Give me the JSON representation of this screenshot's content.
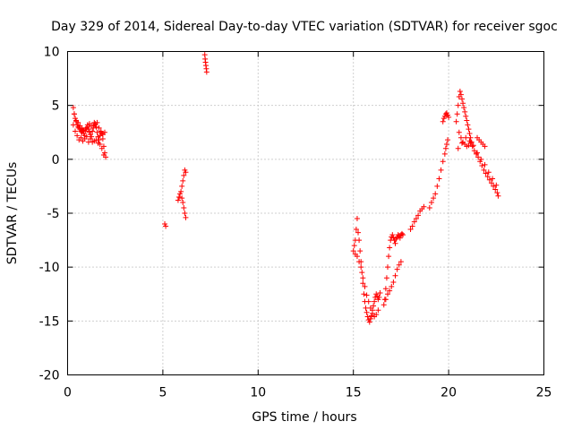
{
  "chart_data": {
    "type": "scatter",
    "title": "Day 329 of 2014, Sidereal Day-to-day VTEC variation (SDTVAR) for receiver sgoc",
    "xlabel": "GPS time / hours",
    "ylabel": "SDTVAR / TECUs",
    "xlim": [
      0,
      25
    ],
    "ylim": [
      -20,
      10
    ],
    "xticks": [
      0,
      5,
      10,
      15,
      20,
      25
    ],
    "yticks": [
      -20,
      -15,
      -10,
      -5,
      0,
      5,
      10
    ],
    "grid": true,
    "legend": "none",
    "marker": "plus",
    "color": "#ff0000",
    "series": [
      {
        "name": "SDTVAR",
        "x": [
          0.3,
          0.35,
          0.4,
          0.45,
          0.5,
          0.55,
          0.6,
          0.65,
          0.7,
          0.75,
          0.8,
          0.85,
          0.9,
          0.95,
          1.0,
          1.05,
          1.1,
          1.15,
          1.2,
          1.25,
          1.3,
          1.35,
          1.4,
          1.45,
          1.5,
          1.55,
          1.6,
          1.65,
          1.7,
          1.75,
          1.8,
          1.85,
          1.9,
          1.95,
          2.0,
          0.3,
          0.4,
          0.5,
          0.6,
          0.7,
          0.8,
          0.9,
          1.0,
          1.1,
          1.2,
          1.3,
          1.4,
          1.5,
          1.6,
          1.7,
          1.8,
          1.9,
          0.35,
          0.45,
          0.55,
          0.65,
          0.75,
          0.85,
          0.95,
          1.05,
          1.15,
          1.25,
          1.35,
          1.45,
          1.55,
          1.65,
          1.75,
          1.85,
          1.95,
          5.1,
          5.15,
          5.8,
          5.85,
          5.9,
          5.95,
          6.0,
          6.05,
          6.1,
          6.15,
          6.2,
          6.2,
          6.15,
          6.1,
          6.05,
          6.0,
          7.2,
          7.22,
          7.24,
          7.26,
          7.28,
          7.3,
          15.0,
          15.05,
          15.1,
          15.15,
          15.2,
          15.25,
          15.3,
          15.35,
          15.4,
          15.45,
          15.5,
          15.55,
          15.6,
          15.65,
          15.7,
          15.75,
          15.8,
          15.85,
          15.9,
          15.95,
          16.0,
          16.05,
          16.1,
          16.15,
          16.2,
          16.25,
          16.3,
          16.35,
          16.4,
          15.1,
          15.2,
          15.3,
          15.4,
          15.5,
          15.6,
          15.7,
          15.8,
          15.9,
          16.0,
          16.1,
          16.2,
          16.3,
          16.6,
          16.65,
          16.7,
          16.75,
          16.8,
          16.85,
          16.9,
          16.95,
          17.0,
          17.05,
          17.1,
          17.15,
          17.2,
          17.25,
          17.3,
          17.35,
          17.4,
          17.45,
          17.5,
          17.55,
          17.6,
          16.7,
          16.8,
          16.9,
          17.0,
          17.1,
          17.2,
          17.3,
          17.4,
          17.5,
          18.0,
          18.1,
          18.2,
          18.3,
          18.4,
          18.5,
          18.6,
          18.7,
          19.0,
          19.1,
          19.2,
          19.3,
          19.4,
          19.5,
          19.6,
          19.7,
          19.8,
          19.85,
          19.9,
          19.95,
          19.7,
          19.75,
          19.8,
          19.85,
          19.9,
          19.95,
          20.0,
          20.4,
          20.45,
          20.5,
          20.55,
          20.6,
          20.65,
          20.7,
          20.75,
          20.8,
          20.85,
          20.9,
          20.95,
          21.0,
          21.05,
          21.1,
          21.15,
          21.2,
          20.55,
          20.65,
          20.75,
          20.85,
          20.95,
          21.05,
          21.15,
          21.25,
          21.35,
          21.45,
          21.55,
          21.65,
          21.75,
          21.85,
          21.95,
          22.05,
          22.15,
          22.25,
          22.35,
          22.45,
          22.55,
          22.6,
          20.5,
          20.7,
          20.9,
          21.1,
          21.3,
          21.5,
          21.7,
          21.9,
          22.1,
          22.3,
          22.5,
          21.5,
          21.6,
          21.7,
          21.8,
          21.9
        ],
        "y": [
          4.8,
          4.2,
          3.8,
          3.5,
          3.2,
          3.0,
          2.9,
          2.8,
          2.6,
          2.5,
          2.7,
          2.4,
          2.2,
          2.6,
          2.9,
          3.0,
          2.8,
          2.5,
          2.3,
          2.1,
          2.6,
          3.1,
          3.4,
          3.3,
          3.0,
          2.5,
          2.1,
          1.8,
          2.2,
          2.5,
          2.4,
          1.9,
          1.2,
          0.6,
          0.2,
          3.2,
          2.6,
          2.2,
          1.8,
          2.0,
          1.7,
          1.9,
          2.1,
          1.6,
          1.9,
          1.6,
          1.7,
          1.8,
          1.5,
          1.4,
          1.0,
          0.4,
          4.2,
          3.6,
          3.4,
          3.1,
          2.9,
          2.7,
          2.8,
          3.2,
          3.3,
          3.1,
          2.9,
          3.2,
          3.4,
          2.9,
          2.6,
          2.3,
          2.5,
          -6.0,
          -6.2,
          -3.8,
          -3.5,
          -3.2,
          -3.0,
          -2.5,
          -2.0,
          -1.5,
          -1.0,
          -1.2,
          -5.4,
          -5.0,
          -4.5,
          -4.0,
          -3.6,
          9.7,
          9.3,
          9.0,
          8.7,
          8.4,
          8.1,
          -8.5,
          -8.0,
          -7.5,
          -6.5,
          -5.5,
          -6.8,
          -7.5,
          -8.5,
          -9.5,
          -10.5,
          -11.5,
          -12.5,
          -13.2,
          -13.8,
          -14.2,
          -14.6,
          -14.9,
          -15.1,
          -14.8,
          -14.5,
          -14.0,
          -13.6,
          -13.2,
          -12.8,
          -12.5,
          -12.7,
          -13.0,
          -12.8,
          -12.4,
          -8.8,
          -9.0,
          -9.5,
          -10.0,
          -11.0,
          -11.8,
          -12.6,
          -13.2,
          -13.8,
          -14.3,
          -14.6,
          -14.4,
          -14.0,
          -13.5,
          -13.0,
          -12.0,
          -11.0,
          -10.0,
          -9.0,
          -8.2,
          -7.5,
          -7.2,
          -7.0,
          -7.3,
          -7.5,
          -7.8,
          -7.4,
          -7.2,
          -7.0,
          -7.1,
          -7.3,
          -7.0,
          -6.9,
          -7.0,
          -13.0,
          -12.5,
          -12.2,
          -11.8,
          -11.4,
          -10.8,
          -10.2,
          -9.8,
          -9.5,
          -6.5,
          -6.2,
          -5.8,
          -5.5,
          -5.2,
          -4.8,
          -4.6,
          -4.4,
          -4.5,
          -4.0,
          -3.6,
          -3.2,
          -2.5,
          -1.8,
          -1.0,
          -0.2,
          0.5,
          1.0,
          1.4,
          1.8,
          3.5,
          3.8,
          4.0,
          4.2,
          4.3,
          4.1,
          3.9,
          3.5,
          4.2,
          5.0,
          5.8,
          6.3,
          6.0,
          5.6,
          5.2,
          4.8,
          4.4,
          4.0,
          3.6,
          3.2,
          2.8,
          2.4,
          2.0,
          1.6,
          2.5,
          2.0,
          1.6,
          1.4,
          1.2,
          1.3,
          1.5,
          1.2,
          0.8,
          0.5,
          0.2,
          -0.2,
          -0.6,
          -1.0,
          -1.3,
          -1.6,
          -1.9,
          -2.2,
          -2.5,
          -2.8,
          -3.1,
          -3.4,
          1.0,
          1.5,
          2.0,
          1.7,
          1.3,
          0.6,
          0.0,
          -0.5,
          -1.2,
          -1.8,
          -2.4,
          2.0,
          1.8,
          1.6,
          1.4,
          1.2
        ]
      }
    ]
  }
}
